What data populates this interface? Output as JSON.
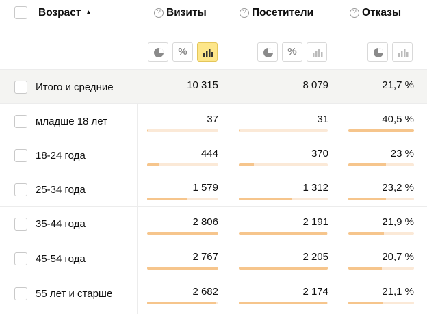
{
  "header": {
    "dimension_title": "Возраст",
    "sort_indicator": "▲",
    "metrics": [
      {
        "title": "Визиты",
        "help": "?"
      },
      {
        "title": "Посетители",
        "help": "?"
      },
      {
        "title": "Отказы",
        "help": "?"
      }
    ],
    "percent_symbol": "%"
  },
  "rows": [
    {
      "label": "Итого и средние",
      "visits": "10 315",
      "visitors": "8 079",
      "bounce": "21,7 %",
      "is_total": true
    },
    {
      "label": "младше 18 лет",
      "visits": "37",
      "visitors": "31",
      "bounce": "40,5 %",
      "visits_share": 0.01,
      "visitors_share": 0.01,
      "bounce_share": 1.0
    },
    {
      "label": "18-24 года",
      "visits": "444",
      "visitors": "370",
      "bounce": "23 %",
      "visits_share": 0.16,
      "visitors_share": 0.17,
      "bounce_share": 0.57
    },
    {
      "label": "25-34 года",
      "visits": "1 579",
      "visitors": "1 312",
      "bounce": "23,2 %",
      "visits_share": 0.56,
      "visitors_share": 0.6,
      "bounce_share": 0.57
    },
    {
      "label": "35-44 года",
      "visits": "2 806",
      "visitors": "2 191",
      "bounce": "21,9 %",
      "visits_share": 1.0,
      "visitors_share": 0.99,
      "bounce_share": 0.54
    },
    {
      "label": "45-54 года",
      "visits": "2 767",
      "visitors": "2 205",
      "bounce": "20,7 %",
      "visits_share": 0.99,
      "visitors_share": 1.0,
      "bounce_share": 0.51
    },
    {
      "label": "55 лет и старше",
      "visits": "2 682",
      "visitors": "2 174",
      "bounce": "21,1 %",
      "visits_share": 0.96,
      "visitors_share": 0.99,
      "bounce_share": 0.52
    }
  ],
  "colors": {
    "active_toggle": "#fde68a",
    "bar_track": "#fbe9d7",
    "bar_fill": "#f6c58c",
    "total_row_bg": "#f4f4f2"
  },
  "icons": {
    "chart_toggles": [
      "pie-chart-icon",
      "percent-icon",
      "bar-chart-icon"
    ]
  }
}
